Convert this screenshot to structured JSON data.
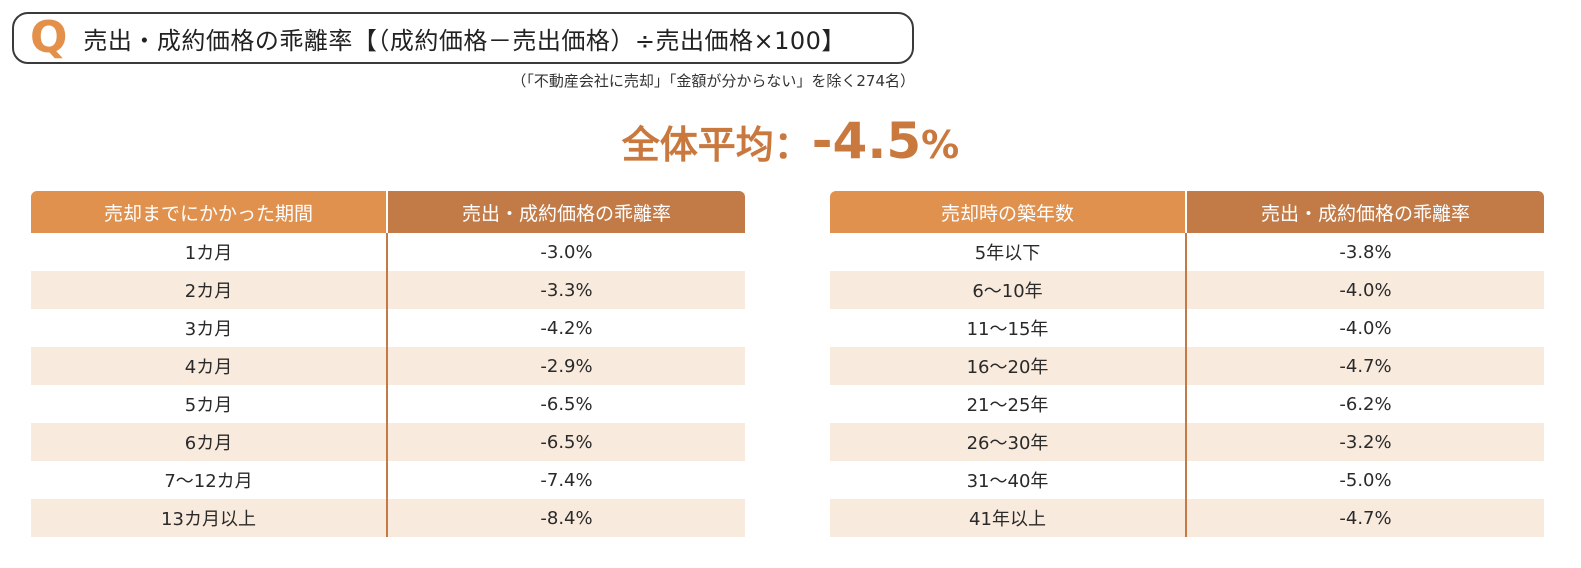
{
  "question": {
    "letter": "Q",
    "text": "売出・成約価格の乖離率【（成約価格－売出価格）÷売出価格×100】",
    "note": "（「不動産会社に売却」「金額が分からない」を除く274名）"
  },
  "average": {
    "label": "全体平均：",
    "value": "-4.5",
    "unit": "%"
  },
  "table_period": {
    "headers": [
      "売却までにかかった期間",
      "売出・成約価格の乖離率"
    ],
    "rows": [
      [
        "1カ月",
        "-3.0%"
      ],
      [
        "2カ月",
        "-3.3%"
      ],
      [
        "3カ月",
        "-4.2%"
      ],
      [
        "4カ月",
        "-2.9%"
      ],
      [
        "5カ月",
        "-6.5%"
      ],
      [
        "6カ月",
        "-6.5%"
      ],
      [
        "7～12カ月",
        "-7.4%"
      ],
      [
        "13カ月以上",
        "-8.4%"
      ]
    ]
  },
  "table_age": {
    "headers": [
      "売却時の築年数",
      "売出・成約価格の乖離率"
    ],
    "rows": [
      [
        "5年以下",
        "-3.8%"
      ],
      [
        "6～10年",
        "-4.0%"
      ],
      [
        "11～15年",
        "-4.0%"
      ],
      [
        "16～20年",
        "-4.7%"
      ],
      [
        "21～25年",
        "-6.2%"
      ],
      [
        "26～30年",
        "-3.2%"
      ],
      [
        "31～40年",
        "-5.0%"
      ],
      [
        "41年以上",
        "-4.7%"
      ]
    ]
  },
  "colors": {
    "accent": "#e2904a",
    "header_light": "#e0914e",
    "header_dark": "#c27b47",
    "row_alt": "#f8eadc",
    "average_text": "#c9783e"
  }
}
